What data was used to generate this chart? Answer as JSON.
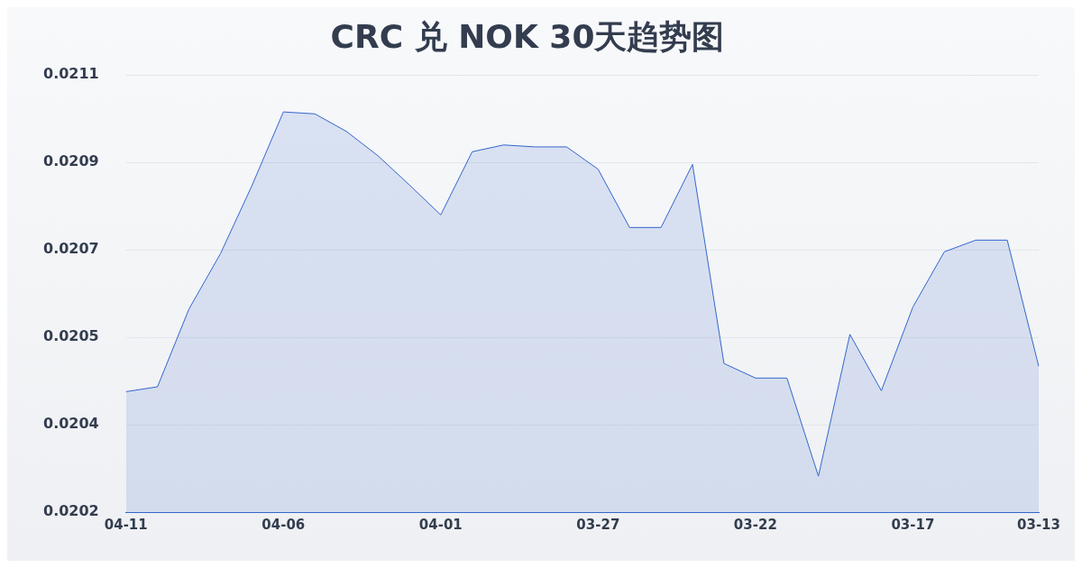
{
  "chart_data": {
    "type": "area",
    "title": "CRC 兑 NOK 30天趋势图",
    "categories": [
      "04-11",
      null,
      null,
      null,
      null,
      "04-06",
      null,
      null,
      null,
      null,
      "04-01",
      null,
      null,
      null,
      null,
      "03-27",
      null,
      null,
      null,
      null,
      "03-22",
      null,
      null,
      null,
      null,
      "03-17",
      null,
      null,
      null,
      "03-13"
    ],
    "series": [
      {
        "color": "#3366cc",
        "values": [
          0.020428,
          0.020438,
          0.020598,
          0.020712,
          0.020852,
          0.021004,
          0.021,
          0.020964,
          0.020914,
          0.020854,
          0.020792,
          0.020922,
          0.020936,
          0.020932,
          0.020932,
          0.020886,
          0.020766,
          0.020766,
          0.020896,
          0.020486,
          0.020456,
          0.020456,
          0.020254,
          0.020546,
          0.02043,
          0.020602,
          0.020716,
          0.02074,
          0.02074,
          0.02048
        ]
      }
    ],
    "ylim": [
      0.02018,
      0.02108
    ],
    "yticks": [
      {
        "value": 0.02018,
        "label": "0.0202"
      },
      {
        "value": 0.02036,
        "label": "0.0204"
      },
      {
        "value": 0.02054,
        "label": "0.0205"
      },
      {
        "value": 0.02072,
        "label": "0.0207"
      },
      {
        "value": 0.0209,
        "label": "0.0209"
      },
      {
        "value": 0.02108,
        "label": "0.0211"
      }
    ],
    "grid": "y"
  }
}
